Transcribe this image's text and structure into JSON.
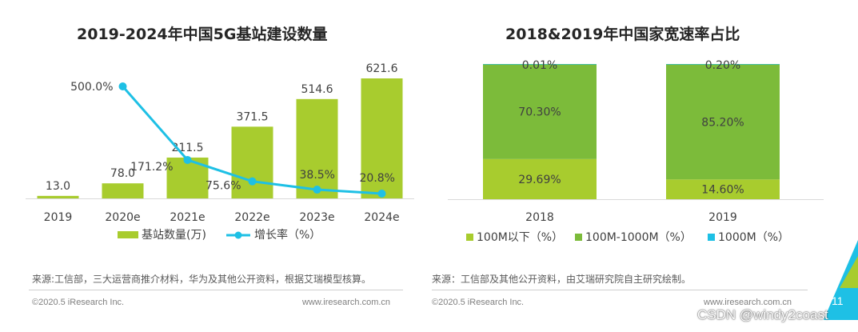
{
  "charts": {
    "left_title": "2019-2024年中国5G基站建设数量",
    "right_title": "2018&2019年中国家宽速率占比"
  },
  "chart_data": [
    {
      "type": "bar",
      "title": "2019-2024年中国5G基站建设数量",
      "categories": [
        "2019",
        "2020e",
        "2021e",
        "2022e",
        "2023e",
        "2024e"
      ],
      "series": [
        {
          "name": "基站数量(万)",
          "type": "bar",
          "values": [
            13.0,
            78.0,
            211.5,
            371.5,
            514.6,
            621.6
          ],
          "labels": [
            "13.0",
            "78.0",
            "211.5",
            "371.5",
            "514.6",
            "621.6"
          ]
        },
        {
          "name": "增长率（%）",
          "type": "line",
          "values": [
            null,
            500.0,
            171.2,
            75.6,
            38.5,
            20.8
          ],
          "labels": [
            "",
            "500.0%",
            "171.2%",
            "75.6%",
            "38.5%",
            "20.8%"
          ]
        }
      ],
      "colors": {
        "bar": "#a8cc2e",
        "line": "#1ec0e5"
      },
      "legend_position": "bottom"
    },
    {
      "type": "bar",
      "stacked": true,
      "percent": true,
      "title": "2018&2019年中国家宽速率占比",
      "categories": [
        "2018",
        "2019"
      ],
      "series": [
        {
          "name": "100M以下（%）",
          "values": [
            29.69,
            14.6
          ],
          "labels": [
            "29.69%",
            "14.60%"
          ],
          "color": "#a8cc2e"
        },
        {
          "name": "100M-1000M（%）",
          "values": [
            70.3,
            85.2
          ],
          "labels": [
            "70.30%",
            "85.20%"
          ],
          "color": "#7cbb3a"
        },
        {
          "name": "1000M（%）",
          "values": [
            0.01,
            0.2
          ],
          "labels": [
            "0.01%",
            "0.20%"
          ],
          "color": "#1ec0e5"
        }
      ],
      "legend_position": "bottom"
    }
  ],
  "sources": {
    "left": "来源:工信部，三大运营商推介材料，华为及其他公开资料，根据艾瑞模型核算。",
    "right": "来源：工信部及其他公开资料，由艾瑞研究院自主研究绘制。"
  },
  "footer": {
    "copyright_left": "©2020.5 iResearch Inc.",
    "url_left": "www.iresearch.com.cn",
    "copyright_right": "©2020.5 iResearch Inc.",
    "url_right": "www.iresearch.com.cn",
    "page_number": "11",
    "watermark": "CSDN @windy2coast"
  }
}
